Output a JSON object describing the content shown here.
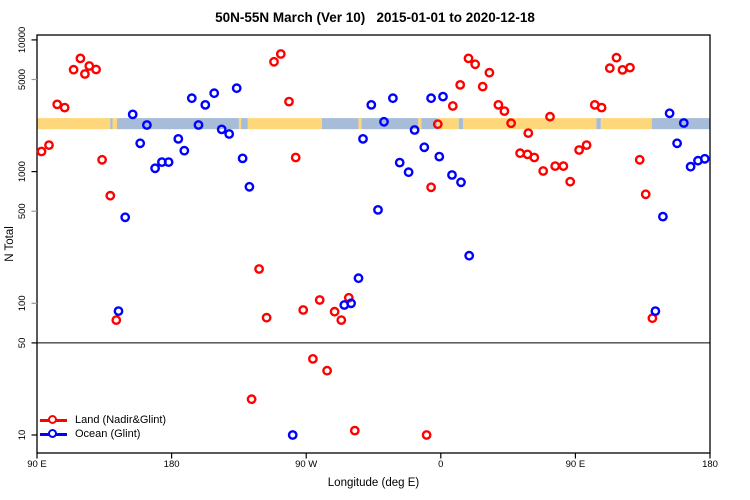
{
  "title": "50N-55N March (Ver 10)   2015-01-01 to 2020-12-18",
  "chart_data": {
    "type": "scatter",
    "title": "50N-55N March (Ver 10)   2015-01-01 to 2020-12-18",
    "xlabel": "Longitude (deg E)",
    "ylabel": "N Total",
    "x_axis": {
      "range": [
        90,
        540
      ],
      "ticks": [
        {
          "value": 90,
          "label": "90 E"
        },
        {
          "value": 180,
          "label": "180"
        },
        {
          "value": 270,
          "label": "90 W"
        },
        {
          "value": 360,
          "label": "0"
        },
        {
          "value": 450,
          "label": "90 E"
        },
        {
          "value": 540,
          "label": "180"
        }
      ]
    },
    "y_axis": {
      "scale": "log",
      "range": [
        7.3,
        10900
      ],
      "ticks": [
        {
          "value": 10000,
          "label": "10000",
          "muted": false
        },
        {
          "value": 5000,
          "label": "5000",
          "muted": true
        },
        {
          "value": 1000,
          "label": "1000",
          "muted": false
        },
        {
          "value": 500,
          "label": "500",
          "muted": true
        },
        {
          "value": 100,
          "label": "100",
          "muted": true
        },
        {
          "value": 50,
          "label": "50",
          "muted": false
        },
        {
          "value": 10,
          "label": "10",
          "muted": false
        }
      ]
    },
    "reference_line_y": 50,
    "legend_position": "bottom-left",
    "surface_band": {
      "y_range": [
        2100,
        2550
      ],
      "land_color": "#FFD77B",
      "ocean_color": "#A6BCD8",
      "segments": [
        {
          "from": 90,
          "to": 139,
          "surface": "land"
        },
        {
          "from": 139,
          "to": 140.5,
          "surface": "ocean"
        },
        {
          "from": 140.5,
          "to": 143.5,
          "surface": "land"
        },
        {
          "from": 143.5,
          "to": 225,
          "surface": "ocean"
        },
        {
          "from": 225,
          "to": 226.5,
          "surface": "land"
        },
        {
          "from": 226.5,
          "to": 231,
          "surface": "ocean"
        },
        {
          "from": 231,
          "to": 280.5,
          "surface": "land"
        },
        {
          "from": 280.5,
          "to": 305,
          "surface": "ocean"
        },
        {
          "from": 305,
          "to": 307,
          "surface": "land"
        },
        {
          "from": 307,
          "to": 345,
          "surface": "ocean"
        },
        {
          "from": 345,
          "to": 347,
          "surface": "land"
        },
        {
          "from": 347,
          "to": 357.5,
          "surface": "ocean"
        },
        {
          "from": 357.5,
          "to": 372,
          "surface": "land"
        },
        {
          "from": 372,
          "to": 375,
          "surface": "ocean"
        },
        {
          "from": 375,
          "to": 464,
          "surface": "land"
        },
        {
          "from": 464,
          "to": 467,
          "surface": "ocean"
        },
        {
          "from": 467,
          "to": 501,
          "surface": "land"
        },
        {
          "from": 501,
          "to": 540,
          "surface": "ocean"
        }
      ]
    },
    "series": [
      {
        "name": "Land (Nadir&Glint)",
        "color": "#FF0000",
        "points": [
          [
            119,
            7240
          ],
          [
            114.5,
            5940
          ],
          [
            125,
            6340
          ],
          [
            129.5,
            5960
          ],
          [
            122,
            5510
          ],
          [
            103.5,
            3240
          ],
          [
            108.5,
            3060
          ],
          [
            98,
            1590
          ],
          [
            93,
            1420
          ],
          [
            133.5,
            1230
          ],
          [
            139,
            656
          ],
          [
            253,
            7820
          ],
          [
            248.5,
            6820
          ],
          [
            258.5,
            3400
          ],
          [
            263,
            1280
          ],
          [
            358,
            2290
          ],
          [
            368,
            3150
          ],
          [
            353.5,
            760
          ],
          [
            378.5,
            7240
          ],
          [
            383,
            6530
          ],
          [
            392.5,
            5640
          ],
          [
            373,
            4550
          ],
          [
            388,
            4420
          ],
          [
            398.5,
            3210
          ],
          [
            402.5,
            2880
          ],
          [
            407,
            2330
          ],
          [
            433,
            2610
          ],
          [
            418.5,
            1960
          ],
          [
            413,
            1380
          ],
          [
            418,
            1350
          ],
          [
            422.5,
            1280
          ],
          [
            463,
            3210
          ],
          [
            467.5,
            3060
          ],
          [
            452.5,
            1460
          ],
          [
            457.5,
            1590
          ],
          [
            436.5,
            1100
          ],
          [
            442,
            1100
          ],
          [
            428.5,
            1010
          ],
          [
            446.5,
            838
          ],
          [
            493,
            1230
          ],
          [
            497,
            672
          ],
          [
            477.5,
            7330
          ],
          [
            473,
            6100
          ],
          [
            481.5,
            5920
          ],
          [
            486.5,
            6160
          ],
          [
            238.5,
            182
          ],
          [
            143,
            74.6
          ],
          [
            243.5,
            77.8
          ],
          [
            233.5,
            18.7
          ],
          [
            279,
            106
          ],
          [
            268,
            88.9
          ],
          [
            298.5,
            110
          ],
          [
            289,
            86.3
          ],
          [
            293.5,
            74.6
          ],
          [
            274.5,
            37.8
          ],
          [
            284,
            30.8
          ],
          [
            302.5,
            10.8
          ],
          [
            350.5,
            10
          ],
          [
            501.5,
            77
          ]
        ]
      },
      {
        "name": "Ocean (Glint)",
        "color": "#0000FF",
        "points": [
          [
            154,
            2720
          ],
          [
            163.5,
            2260
          ],
          [
            193.5,
            3610
          ],
          [
            202.5,
            3210
          ],
          [
            208.5,
            3940
          ],
          [
            223.5,
            4300
          ],
          [
            198,
            2260
          ],
          [
            159,
            1640
          ],
          [
            184.5,
            1770
          ],
          [
            188.5,
            1440
          ],
          [
            169,
            1060
          ],
          [
            173.5,
            1180
          ],
          [
            178,
            1180
          ],
          [
            213.5,
            2090
          ],
          [
            218.5,
            1930
          ],
          [
            227.5,
            1260
          ],
          [
            232,
            767
          ],
          [
            313.5,
            3210
          ],
          [
            328,
            3610
          ],
          [
            322,
            2390
          ],
          [
            308,
            1770
          ],
          [
            342.5,
            2070
          ],
          [
            353.5,
            3610
          ],
          [
            361.5,
            3710
          ],
          [
            349,
            1530
          ],
          [
            359,
            1300
          ],
          [
            332.5,
            1170
          ],
          [
            338.5,
            989
          ],
          [
            318,
            512
          ],
          [
            367.5,
            942
          ],
          [
            373.5,
            830
          ],
          [
            513,
            2770
          ],
          [
            522.5,
            2340
          ],
          [
            518,
            1640
          ],
          [
            527,
            1090
          ],
          [
            532,
            1210
          ],
          [
            536.5,
            1250
          ],
          [
            149,
            450
          ],
          [
            144.5,
            87.3
          ],
          [
            379,
            230
          ],
          [
            305,
            155
          ],
          [
            295.5,
            97
          ],
          [
            300,
            100
          ],
          [
            261,
            10
          ],
          [
            503.5,
            87.3
          ],
          [
            508.5,
            455
          ]
        ]
      }
    ]
  }
}
